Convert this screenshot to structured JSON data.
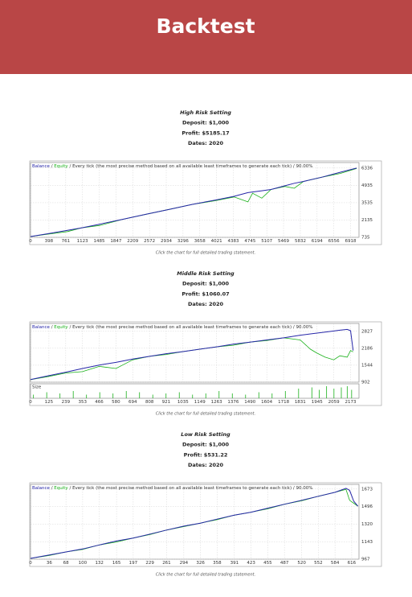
{
  "header": {
    "title": "Backtest"
  },
  "chart_data": [
    {
      "type": "line",
      "title": "High Risk Setting",
      "details": [
        "Deposit: $1,000",
        "Profit: $5185.17",
        "Dates: 2020"
      ],
      "legend_separator": "/",
      "legend_note": "Every tick (the most precise method based on all available least timeframes to generate each tick) / 90.00%",
      "caption": "Click the chart for full detailed trading statement.",
      "x": [
        0,
        400,
        800,
        1100,
        1500,
        2000,
        2500,
        3000,
        3500,
        4000,
        4400,
        4700,
        4800,
        5000,
        5200,
        5500,
        5700,
        5900,
        6300,
        6700,
        7050
      ],
      "series": [
        {
          "name": "Balance",
          "color": "#2626a8",
          "values": [
            800,
            1050,
            1300,
            1500,
            1800,
            2200,
            2600,
            3000,
            3400,
            3750,
            4050,
            4350,
            4400,
            4500,
            4600,
            4900,
            5100,
            5250,
            5600,
            6000,
            6330
          ]
        },
        {
          "name": "Equity",
          "color": "#19b019",
          "values": [
            800,
            1000,
            1200,
            1500,
            1700,
            2200,
            2600,
            3000,
            3400,
            3700,
            4000,
            3600,
            4300,
            3900,
            4600,
            4850,
            4700,
            5250,
            5600,
            5900,
            6300
          ]
        }
      ],
      "xlim": [
        0,
        7100
      ],
      "ylim": [
        735,
        6780
      ],
      "xticks": [
        0,
        398,
        761,
        1123,
        1485,
        1847,
        2209,
        2572,
        2934,
        3296,
        3658,
        4021,
        4383,
        4745,
        5107,
        5469,
        5832,
        6194,
        6556,
        6918
      ],
      "yticks": [
        735,
        2135,
        3535,
        4935,
        6336
      ],
      "grid": true
    },
    {
      "type": "line",
      "title": "Middle Risk Setting",
      "details": [
        "Deposit: $1,000",
        "Profit: $1060.07",
        "Dates: 2020"
      ],
      "legend_separator": "/",
      "legend_note": "Every tick (the most precise method based on all available least timeframes to generate each tick) / 90.00%",
      "caption": "Click the chart for full detailed trading statement.",
      "x": [
        0,
        125,
        239,
        353,
        466,
        580,
        694,
        808,
        921,
        1035,
        1149,
        1263,
        1376,
        1490,
        1604,
        1718,
        1831,
        1900,
        1945,
        2000,
        2059,
        2100,
        2150,
        2173,
        2190
      ],
      "series": [
        {
          "name": "Balance",
          "color": "#2626a8",
          "values": [
            1000,
            1150,
            1280,
            1420,
            1550,
            1650,
            1780,
            1880,
            1980,
            2060,
            2150,
            2240,
            2340,
            2420,
            2500,
            2580,
            2680,
            2730,
            2760,
            2800,
            2840,
            2870,
            2900,
            2850,
            2100
          ]
        },
        {
          "name": "Equity",
          "color": "#19b019",
          "values": [
            1000,
            1120,
            1250,
            1300,
            1500,
            1420,
            1750,
            1880,
            1950,
            2060,
            2150,
            2240,
            2300,
            2420,
            2480,
            2580,
            2500,
            2150,
            2000,
            1850,
            1750,
            1900,
            1850,
            2100,
            2050
          ]
        }
      ],
      "size": {
        "label": "Size",
        "x": [
          20,
          110,
          200,
          290,
          380,
          470,
          560,
          650,
          740,
          830,
          920,
          1010,
          1100,
          1190,
          1280,
          1370,
          1460,
          1550,
          1640,
          1730,
          1820,
          1910,
          1960,
          2010,
          2060,
          2110,
          2150,
          2180
        ],
        "values": [
          3,
          5,
          4,
          6,
          3,
          5,
          4,
          6,
          5,
          3,
          4,
          5,
          3,
          4,
          6,
          4,
          3,
          5,
          4,
          6,
          8,
          9,
          7,
          10,
          8,
          9,
          10,
          7
        ]
      },
      "xlim": [
        0,
        2230
      ],
      "ylim": [
        902,
        3125
      ],
      "xticks": [
        0,
        125,
        239,
        353,
        466,
        580,
        694,
        808,
        921,
        1035,
        1149,
        1263,
        1376,
        1490,
        1604,
        1718,
        1831,
        1945,
        2059,
        2173
      ],
      "yticks": [
        902,
        1544,
        2186,
        2827
      ],
      "grid": true
    },
    {
      "type": "line",
      "title": "Low Risk Setting",
      "details": [
        "Deposit: $1,000",
        "Profit: $531.22",
        "Dates: 2020"
      ],
      "legend_separator": "/",
      "legend_note": "Every tick (the most precise method based on all available least timeframes to generate each tick) / 90.00%",
      "caption": "Click the chart for full detailed trading statement.",
      "x": [
        0,
        36,
        68,
        100,
        132,
        165,
        197,
        229,
        261,
        294,
        326,
        358,
        391,
        423,
        455,
        487,
        520,
        552,
        584,
        605,
        612,
        620,
        628
      ],
      "series": [
        {
          "name": "Balance",
          "color": "#2626a8",
          "values": [
            975,
            1010,
            1040,
            1070,
            1110,
            1150,
            1180,
            1220,
            1260,
            1300,
            1330,
            1370,
            1410,
            1440,
            1480,
            1520,
            1560,
            1600,
            1640,
            1680,
            1660,
            1550,
            1500
          ]
        },
        {
          "name": "Equity",
          "color": "#19b019",
          "values": [
            975,
            1005,
            1040,
            1065,
            1110,
            1140,
            1180,
            1215,
            1260,
            1295,
            1330,
            1365,
            1410,
            1440,
            1475,
            1520,
            1555,
            1600,
            1640,
            1670,
            1560,
            1530,
            1500
          ]
        }
      ],
      "xlim": [
        0,
        630
      ],
      "ylim": [
        967,
        1720
      ],
      "xticks": [
        0,
        36,
        68,
        100,
        132,
        165,
        197,
        229,
        261,
        294,
        326,
        358,
        391,
        423,
        455,
        487,
        520,
        552,
        584,
        616
      ],
      "yticks": [
        967,
        1143,
        1320,
        1496,
        1673
      ],
      "grid": true
    }
  ]
}
